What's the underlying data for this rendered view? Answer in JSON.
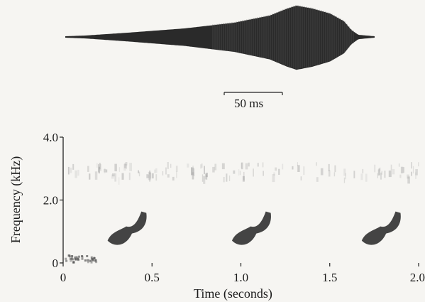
{
  "waveform": {
    "scale_bar_label": "50 ms"
  },
  "chart_data": {
    "type": "spectrogram",
    "xlabel": "Time (seconds)",
    "ylabel": "Frequency (kHz)",
    "xlim": [
      0,
      2.0
    ],
    "ylim": [
      0,
      4.0
    ],
    "x_ticks": [
      "0",
      "0.5",
      "1.0",
      "1.5",
      "2.0"
    ],
    "y_ticks": [
      "0",
      "2.0",
      "4.0"
    ],
    "calls": [
      {
        "start_s": 0.25,
        "end_s": 0.46,
        "start_khz": 0.8,
        "end_khz": 1.5
      },
      {
        "start_s": 0.95,
        "end_s": 1.16,
        "start_khz": 0.8,
        "end_khz": 1.5
      },
      {
        "start_s": 1.68,
        "end_s": 1.89,
        "start_khz": 0.8,
        "end_khz": 1.5
      }
    ],
    "ink_color": "#2b2b2b"
  }
}
